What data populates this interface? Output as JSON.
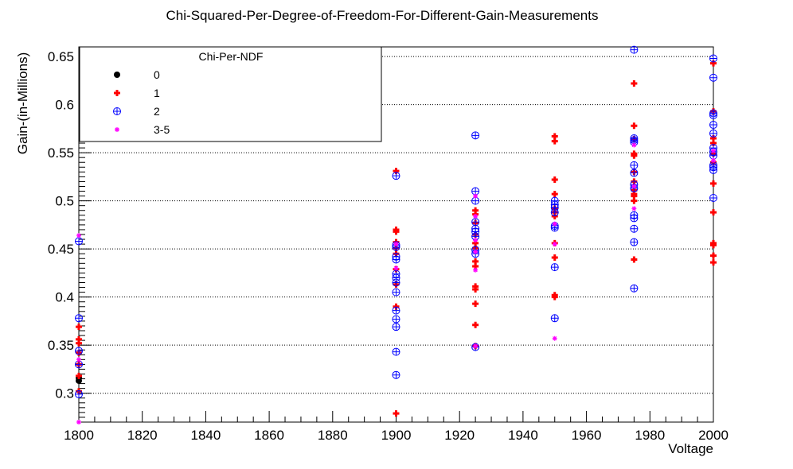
{
  "chart_data": {
    "type": "scatter",
    "title": "Chi-Squared-Per-Degree-of-Freedom-For-Different-Gain-Measurements",
    "xlabel": "Voltage",
    "ylabel": "Gain-(in-Millions)",
    "xlim": [
      1800,
      2000
    ],
    "ylim": [
      0.27,
      0.66
    ],
    "x_ticks": [
      1800,
      1820,
      1840,
      1860,
      1880,
      1900,
      1920,
      1940,
      1960,
      1980,
      2000
    ],
    "x_tick_labels": [
      "1800",
      "1820",
      "1840",
      "1860",
      "1880",
      "1900",
      "1920",
      "1940",
      "1960",
      "1980",
      "2000"
    ],
    "y_ticks": [
      0.3,
      0.35,
      0.4,
      0.45,
      0.5,
      0.55,
      0.6,
      0.65
    ],
    "y_tick_labels": [
      "0.3",
      "0.35",
      "0.4",
      "0.45",
      "0.5",
      "0.55",
      "0.6",
      "0.65"
    ],
    "grid": true,
    "legend": {
      "title": "Chi-Per-NDF",
      "placement": "top-left",
      "entries": [
        "0",
        "1",
        "2",
        "3-5"
      ]
    },
    "series": [
      {
        "name": "0",
        "marker": "filled-circle",
        "color": "#000000",
        "points": [
          [
            1800,
            0.313
          ],
          [
            1800,
            0.316
          ]
        ]
      },
      {
        "name": "1",
        "marker": "plus",
        "color": "#ff0000",
        "points": [
          [
            1800,
            0.302
          ],
          [
            1800,
            0.318
          ],
          [
            1800,
            0.33
          ],
          [
            1800,
            0.342
          ],
          [
            1800,
            0.352
          ],
          [
            1800,
            0.356
          ],
          [
            1800,
            0.369
          ],
          [
            1900,
            0.279
          ],
          [
            1900,
            0.39
          ],
          [
            1900,
            0.413
          ],
          [
            1900,
            0.429
          ],
          [
            1900,
            0.445
          ],
          [
            1900,
            0.451
          ],
          [
            1900,
            0.457
          ],
          [
            1900,
            0.468
          ],
          [
            1900,
            0.47
          ],
          [
            1900,
            0.531
          ],
          [
            1925,
            0.349
          ],
          [
            1925,
            0.371
          ],
          [
            1925,
            0.393
          ],
          [
            1925,
            0.408
          ],
          [
            1925,
            0.411
          ],
          [
            1925,
            0.432
          ],
          [
            1925,
            0.437
          ],
          [
            1925,
            0.451
          ],
          [
            1925,
            0.456
          ],
          [
            1925,
            0.465
          ],
          [
            1925,
            0.477
          ],
          [
            1925,
            0.486
          ],
          [
            1925,
            0.49
          ],
          [
            1950,
            0.4
          ],
          [
            1950,
            0.402
          ],
          [
            1950,
            0.441
          ],
          [
            1950,
            0.456
          ],
          [
            1950,
            0.484
          ],
          [
            1950,
            0.488
          ],
          [
            1950,
            0.492
          ],
          [
            1950,
            0.507
          ],
          [
            1950,
            0.522
          ],
          [
            1950,
            0.562
          ],
          [
            1950,
            0.567
          ],
          [
            1975,
            0.439
          ],
          [
            1975,
            0.5
          ],
          [
            1975,
            0.505
          ],
          [
            1975,
            0.507
          ],
          [
            1975,
            0.511
          ],
          [
            1975,
            0.52
          ],
          [
            1975,
            0.53
          ],
          [
            1975,
            0.547
          ],
          [
            1975,
            0.549
          ],
          [
            1975,
            0.564
          ],
          [
            1975,
            0.578
          ],
          [
            1975,
            0.622
          ],
          [
            2000,
            0.436
          ],
          [
            2000,
            0.443
          ],
          [
            2000,
            0.454
          ],
          [
            2000,
            0.456
          ],
          [
            2000,
            0.488
          ],
          [
            2000,
            0.518
          ],
          [
            2000,
            0.54
          ],
          [
            2000,
            0.549
          ],
          [
            2000,
            0.56
          ],
          [
            2000,
            0.565
          ],
          [
            2000,
            0.593
          ],
          [
            2000,
            0.643
          ]
        ]
      },
      {
        "name": "2",
        "marker": "circle-plus",
        "color": "#0000ff",
        "points": [
          [
            1800,
            0.299
          ],
          [
            1800,
            0.33
          ],
          [
            1800,
            0.344
          ],
          [
            1800,
            0.378
          ],
          [
            1800,
            0.458
          ],
          [
            1900,
            0.319
          ],
          [
            1900,
            0.343
          ],
          [
            1900,
            0.369
          ],
          [
            1900,
            0.377
          ],
          [
            1900,
            0.386
          ],
          [
            1900,
            0.405
          ],
          [
            1900,
            0.415
          ],
          [
            1900,
            0.42
          ],
          [
            1900,
            0.424
          ],
          [
            1900,
            0.439
          ],
          [
            1900,
            0.442
          ],
          [
            1900,
            0.452
          ],
          [
            1900,
            0.454
          ],
          [
            1900,
            0.526
          ],
          [
            1925,
            0.348
          ],
          [
            1925,
            0.445
          ],
          [
            1925,
            0.449
          ],
          [
            1925,
            0.463
          ],
          [
            1925,
            0.468
          ],
          [
            1925,
            0.471
          ],
          [
            1925,
            0.478
          ],
          [
            1925,
            0.5
          ],
          [
            1925,
            0.51
          ],
          [
            1925,
            0.568
          ],
          [
            1950,
            0.378
          ],
          [
            1950,
            0.431
          ],
          [
            1950,
            0.472
          ],
          [
            1950,
            0.474
          ],
          [
            1950,
            0.488
          ],
          [
            1950,
            0.493
          ],
          [
            1950,
            0.496
          ],
          [
            1950,
            0.5
          ],
          [
            1975,
            0.409
          ],
          [
            1975,
            0.457
          ],
          [
            1975,
            0.471
          ],
          [
            1975,
            0.482
          ],
          [
            1975,
            0.485
          ],
          [
            1975,
            0.513
          ],
          [
            1975,
            0.517
          ],
          [
            1975,
            0.529
          ],
          [
            1975,
            0.537
          ],
          [
            1975,
            0.561
          ],
          [
            1975,
            0.563
          ],
          [
            1975,
            0.565
          ],
          [
            1975,
            0.657
          ],
          [
            2000,
            0.503
          ],
          [
            2000,
            0.532
          ],
          [
            2000,
            0.535
          ],
          [
            2000,
            0.537
          ],
          [
            2000,
            0.547
          ],
          [
            2000,
            0.551
          ],
          [
            2000,
            0.555
          ],
          [
            2000,
            0.57
          ],
          [
            2000,
            0.579
          ],
          [
            2000,
            0.589
          ],
          [
            2000,
            0.591
          ],
          [
            2000,
            0.628
          ],
          [
            2000,
            0.648
          ]
        ]
      },
      {
        "name": "3-5",
        "marker": "star",
        "color": "#ff00ff",
        "points": [
          [
            1800,
            0.27
          ],
          [
            1800,
            0.335
          ],
          [
            1800,
            0.464
          ],
          [
            1900,
            0.43
          ],
          [
            1900,
            0.455
          ],
          [
            1925,
            0.349
          ],
          [
            1925,
            0.428
          ],
          [
            1925,
            0.447
          ],
          [
            1925,
            0.459
          ],
          [
            1925,
            0.484
          ],
          [
            1925,
            0.505
          ],
          [
            1950,
            0.357
          ],
          [
            1950,
            0.455
          ],
          [
            1950,
            0.476
          ],
          [
            1975,
            0.492
          ],
          [
            1975,
            0.515
          ],
          [
            1975,
            0.558
          ],
          [
            2000,
            0.542
          ],
          [
            2000,
            0.552
          ]
        ]
      }
    ]
  }
}
